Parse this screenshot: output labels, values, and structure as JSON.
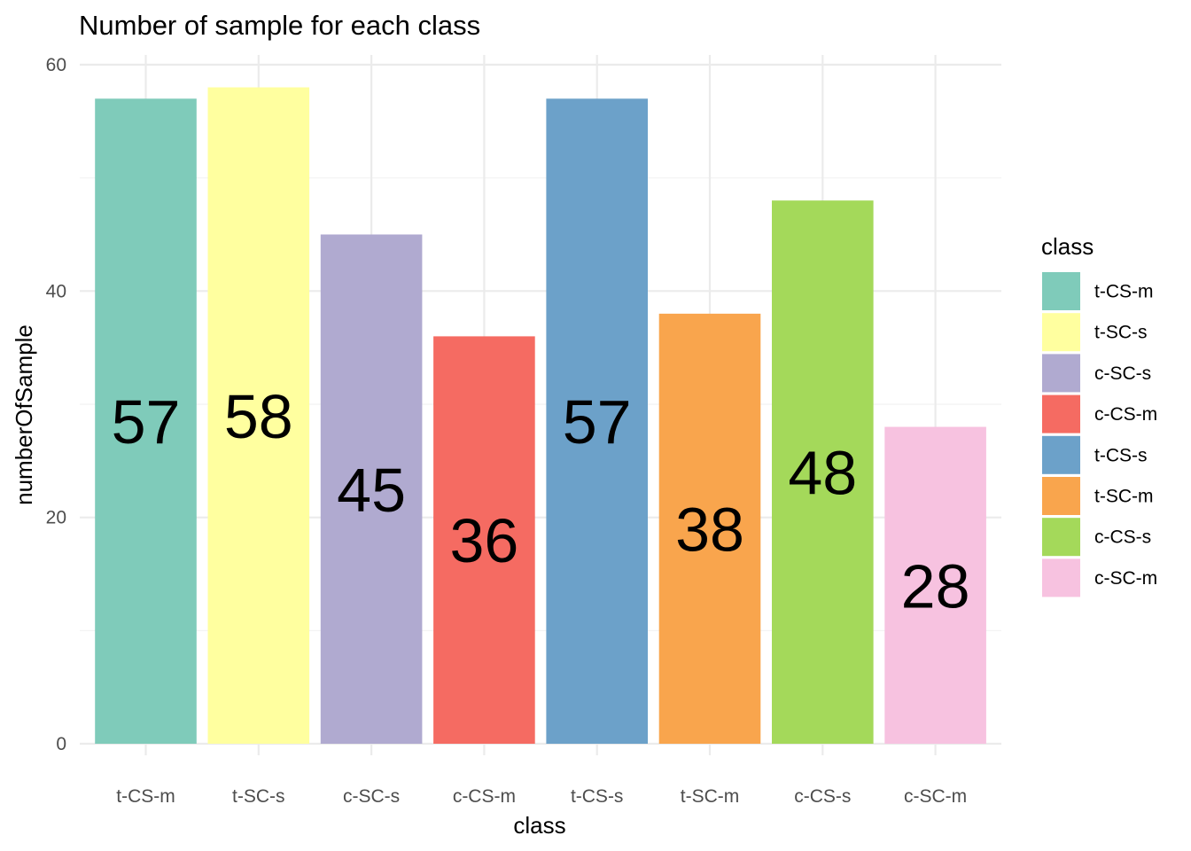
{
  "chart_data": {
    "type": "bar",
    "title": "Number of sample for each class",
    "xlabel": "class",
    "ylabel": "numberOfSample",
    "ylim": [
      0,
      60
    ],
    "yticks": [
      0,
      20,
      40,
      60
    ],
    "grid": true,
    "categories": [
      "t-CS-m",
      "t-SC-s",
      "c-SC-s",
      "c-CS-m",
      "t-CS-s",
      "t-SC-m",
      "c-CS-s",
      "c-SC-m"
    ],
    "values": [
      57,
      58,
      45,
      36,
      57,
      38,
      48,
      28
    ],
    "colors": [
      "#7fcbba",
      "#ffff9f",
      "#b0aad0",
      "#f56b62",
      "#6ca1c9",
      "#f9a54d",
      "#a4d95a",
      "#f7c2e0"
    ],
    "legend": {
      "title": "class",
      "placement": "right",
      "entries": [
        "t-CS-m",
        "t-SC-s",
        "c-SC-s",
        "c-CS-m",
        "t-CS-s",
        "t-SC-m",
        "c-CS-s",
        "c-SC-m"
      ]
    }
  }
}
